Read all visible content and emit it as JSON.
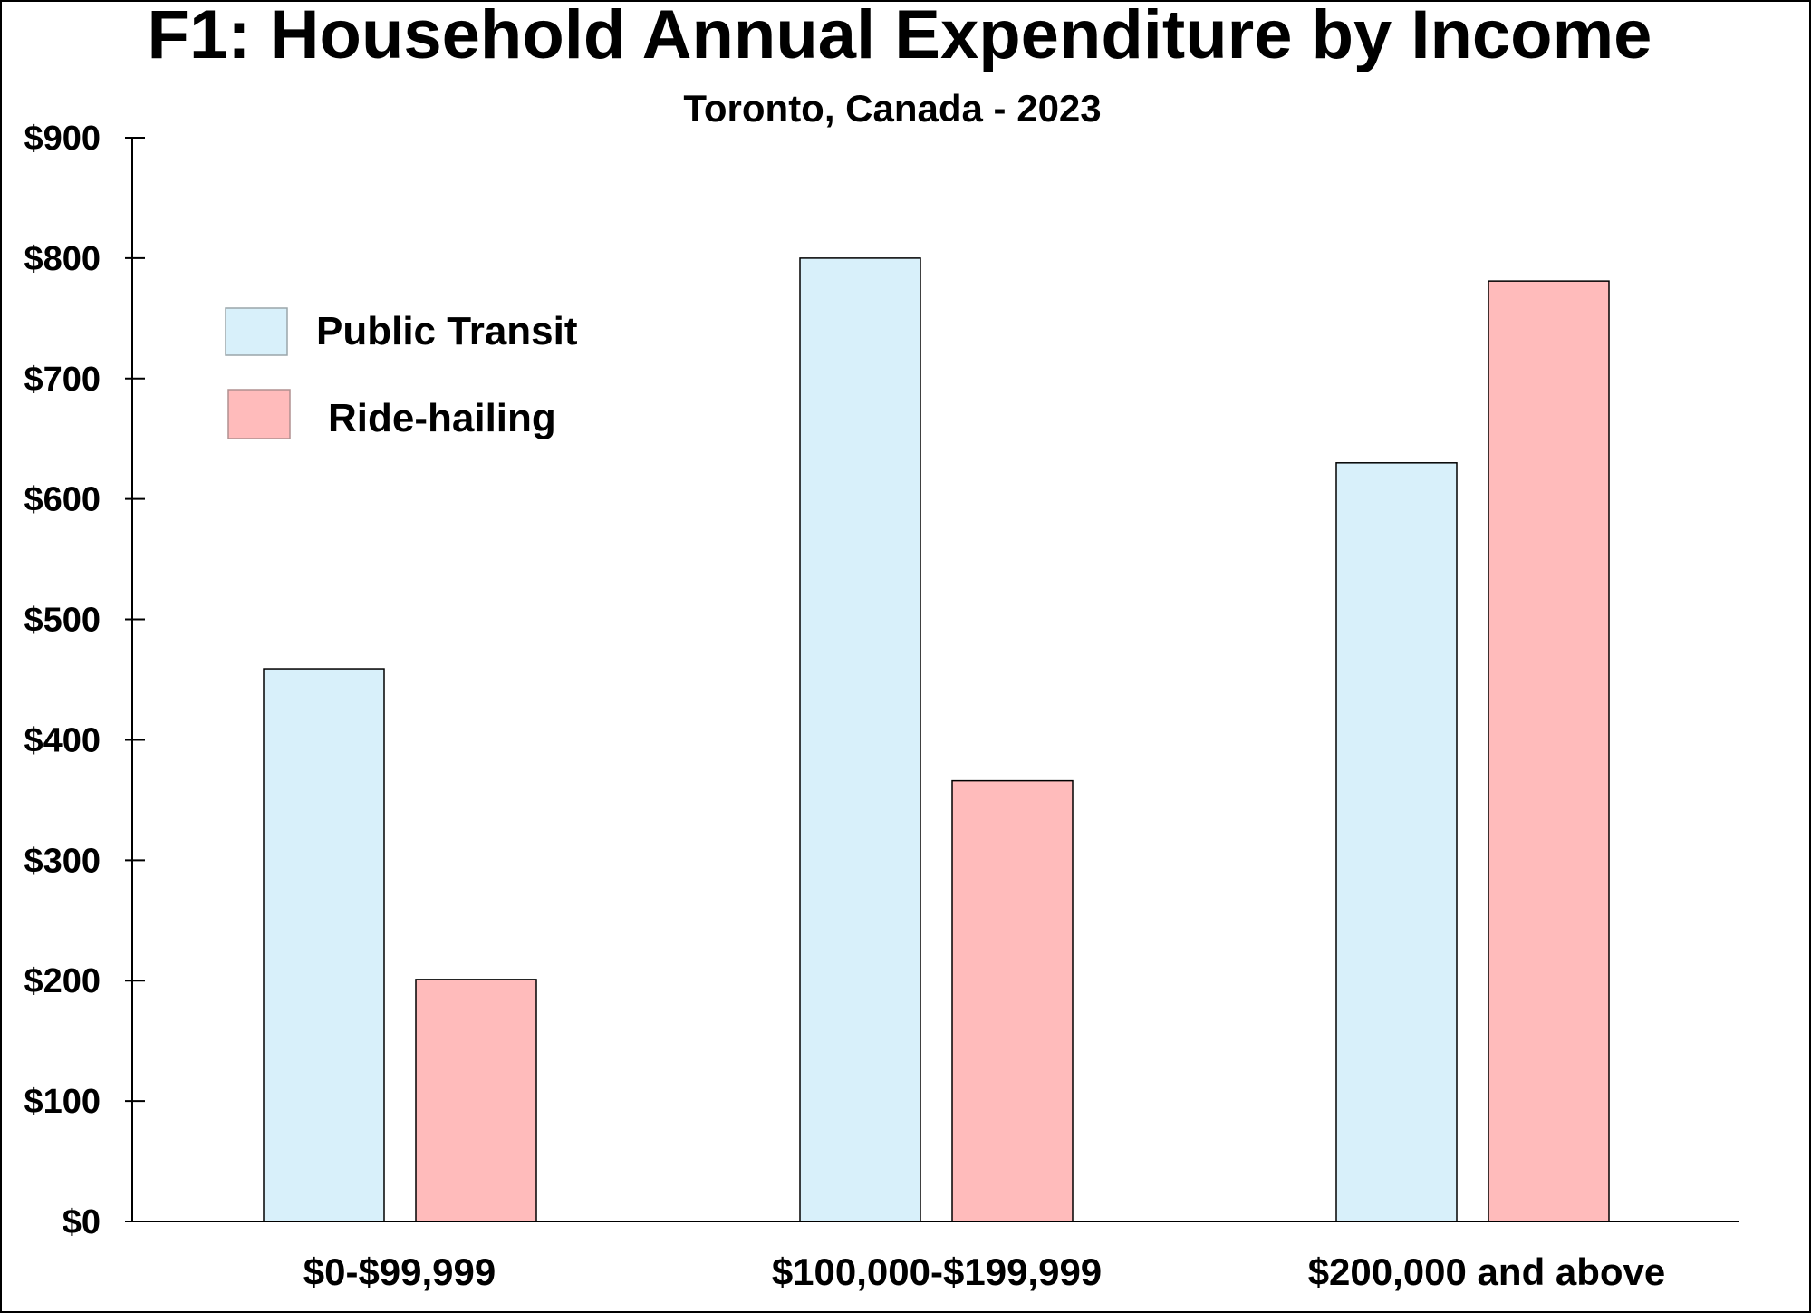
{
  "chart_data": {
    "type": "bar",
    "title": "F1: Household Annual Expenditure by Income",
    "subtitle": "Toronto, Canada - 2023",
    "xlabel": "",
    "ylabel": "",
    "ylim": [
      0,
      900
    ],
    "yticks": [
      0,
      100,
      200,
      300,
      400,
      500,
      600,
      700,
      800,
      900
    ],
    "ytick_labels": [
      "$0",
      "$100",
      "$200",
      "$300",
      "$400",
      "$500",
      "$600",
      "$700",
      "$800",
      "$900"
    ],
    "grid": false,
    "legend_position": "top-left",
    "categories": [
      "$0-$99,999",
      "$100,000-$199,999",
      "$200,000 and above"
    ],
    "series": [
      {
        "name": "Public Transit",
        "color": "#d8f0fa",
        "values": [
          459,
          800,
          630
        ]
      },
      {
        "name": "Ride-hailing",
        "color": "#ffbbbb",
        "values": [
          201,
          366,
          781
        ]
      }
    ]
  }
}
